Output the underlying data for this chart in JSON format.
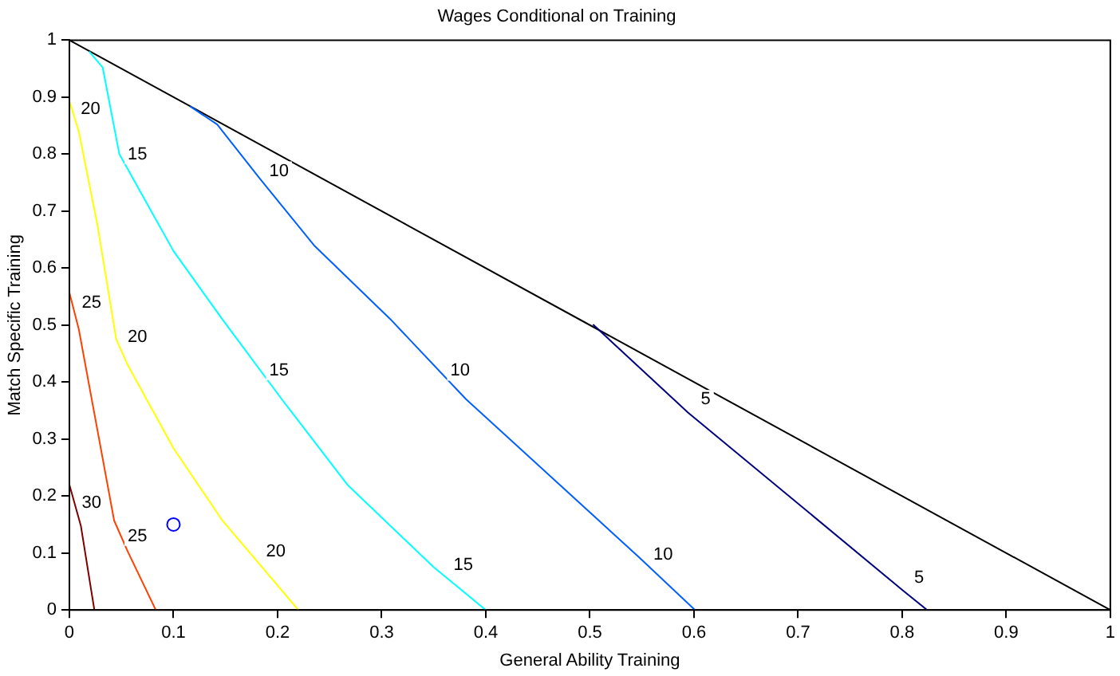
{
  "chart_data": {
    "type": "line",
    "title": "Wages Conditional on Training",
    "xlabel": "General Ability Training",
    "ylabel": "Match Specific Training",
    "xlim": [
      0,
      1
    ],
    "ylim": [
      0,
      1
    ],
    "xticks": [
      0,
      0.1,
      0.2,
      0.3,
      0.4,
      0.5,
      0.6,
      0.7,
      0.8,
      0.9,
      1
    ],
    "yticks": [
      0,
      0.1,
      0.2,
      0.3,
      0.4,
      0.5,
      0.6,
      0.7,
      0.8,
      0.9,
      1
    ],
    "grid": false,
    "legend": false,
    "marker": "none",
    "line_style": "solid",
    "series": [
      {
        "color": "#800000",
        "x": [
          0,
          0.011,
          0.024
        ],
        "values": [
          0.22,
          0.148,
          0
        ]
      },
      {
        "color": "#ff4000",
        "x": [
          0,
          0.009,
          0.043,
          0.056,
          0.083
        ],
        "values": [
          0.557,
          0.493,
          0.157,
          0.103,
          0
        ]
      },
      {
        "color": "#ffff00",
        "x": [
          0,
          0.009,
          0.027,
          0.045,
          0.056,
          0.1,
          0.147,
          0.22
        ],
        "values": [
          0.893,
          0.84,
          0.675,
          0.475,
          0.43,
          0.284,
          0.157,
          0
        ]
      },
      {
        "color": "#00ffff",
        "x": [
          0.019,
          0.032,
          0.048,
          0.1,
          0.147,
          0.204,
          0.267,
          0.35,
          0.4
        ],
        "values": [
          0.98,
          0.952,
          0.8,
          0.63,
          0.51,
          0.37,
          0.22,
          0.075,
          0
        ]
      },
      {
        "color": "#0060ff",
        "x": [
          0.116,
          0.142,
          0.183,
          0.235,
          0.308,
          0.381,
          0.547,
          0.601
        ],
        "values": [
          0.884,
          0.852,
          0.757,
          0.64,
          0.511,
          0.37,
          0.093,
          0
        ]
      },
      {
        "color": "#000080",
        "x": [
          0.503,
          0.594,
          0.801,
          0.824
        ],
        "values": [
          0.501,
          0.347,
          0.034,
          0
        ]
      },
      {
        "color": "#000000",
        "x": [
          0,
          1
        ],
        "values": [
          1,
          0
        ]
      },
      {
        "type": "scatter",
        "marker": "circle",
        "color": "#0000ff",
        "x": [
          0.1
        ],
        "values": [
          0.15
        ]
      }
    ],
    "annotations": [
      {
        "text": "30",
        "x": 0.006,
        "y": 0.166
      },
      {
        "text": "25",
        "x": 0.006,
        "y": 0.516
      },
      {
        "text": "25",
        "x": 0.05,
        "y": 0.107
      },
      {
        "text": "20",
        "x": 0.005,
        "y": 0.857
      },
      {
        "text": "20",
        "x": 0.05,
        "y": 0.457
      },
      {
        "text": "20",
        "x": 0.183,
        "y": 0.08
      },
      {
        "text": "15",
        "x": 0.05,
        "y": 0.777
      },
      {
        "text": "15",
        "x": 0.186,
        "y": 0.398
      },
      {
        "text": "15",
        "x": 0.363,
        "y": 0.057
      },
      {
        "text": "10",
        "x": 0.186,
        "y": 0.748
      },
      {
        "text": "10",
        "x": 0.36,
        "y": 0.397
      },
      {
        "text": "10",
        "x": 0.555,
        "y": 0.074
      },
      {
        "text": "5",
        "x": 0.596,
        "y": 0.347
      },
      {
        "text": "5",
        "x": 0.801,
        "y": 0.034
      }
    ]
  }
}
